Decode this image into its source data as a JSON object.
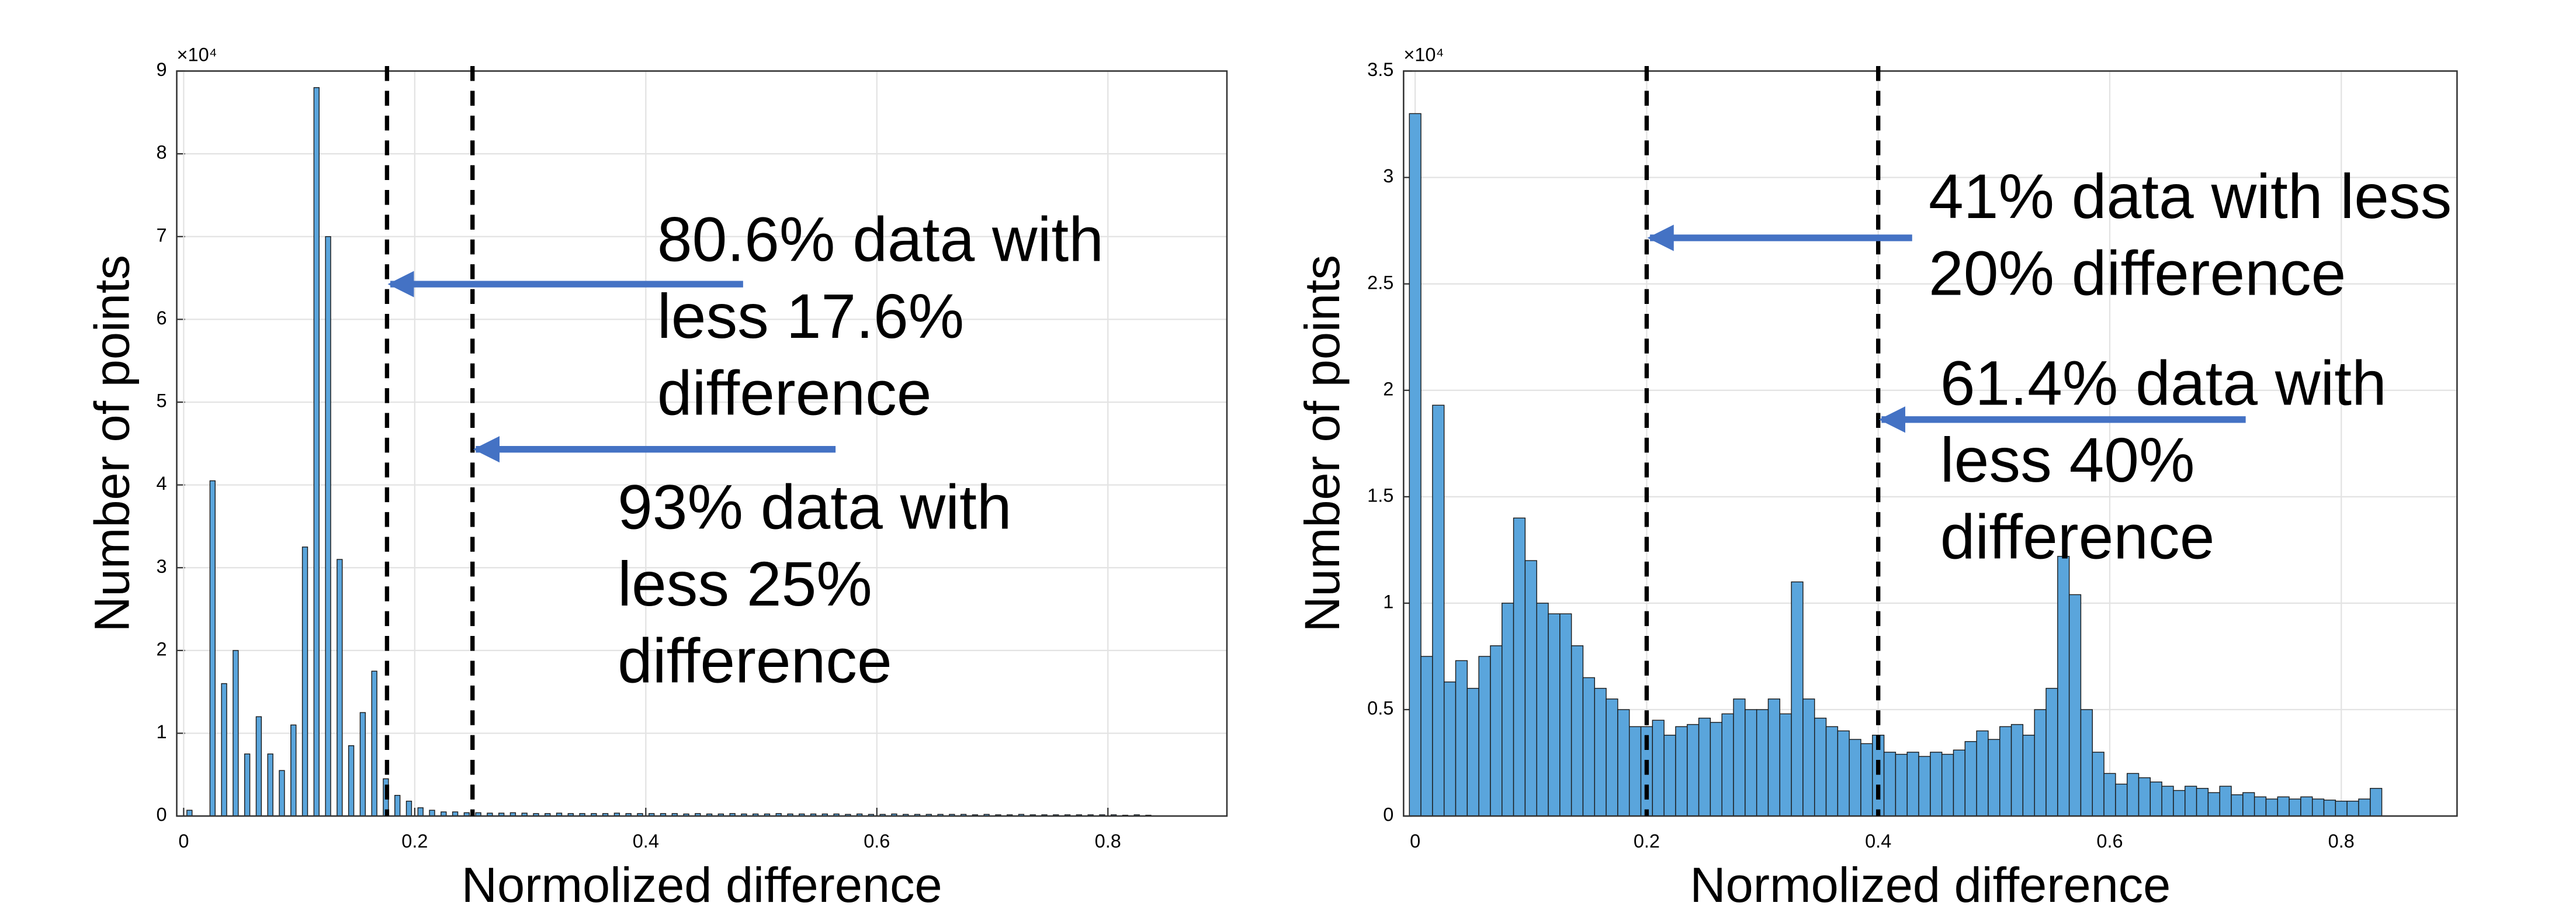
{
  "chart_data": [
    {
      "type": "histogram",
      "xlabel": "Normolized difference",
      "ylabel": "Number of points",
      "y_exponent_label": "×10⁴",
      "bins": [
        0,
        0.01,
        0.02,
        0.03,
        0.04,
        0.05,
        0.06,
        0.07,
        0.08,
        0.09,
        0.1,
        0.11,
        0.12,
        0.13,
        0.14,
        0.15,
        0.16,
        0.17,
        0.18,
        0.19,
        0.2,
        0.21,
        0.22,
        0.23,
        0.24,
        0.25,
        0.26,
        0.27,
        0.28,
        0.29,
        0.3,
        0.31,
        0.32,
        0.33,
        0.34,
        0.35,
        0.36,
        0.37,
        0.38,
        0.39,
        0.4,
        0.41,
        0.42,
        0.43,
        0.44,
        0.45,
        0.46,
        0.47,
        0.48,
        0.49,
        0.5,
        0.51,
        0.52,
        0.53,
        0.54,
        0.55,
        0.56,
        0.57,
        0.58,
        0.59,
        0.6,
        0.61,
        0.62,
        0.63,
        0.64,
        0.65,
        0.66,
        0.67,
        0.68,
        0.69,
        0.7,
        0.71,
        0.72,
        0.73,
        0.74,
        0.75,
        0.76,
        0.77,
        0.78,
        0.79,
        0.8,
        0.81,
        0.82,
        0.83,
        0.84
      ],
      "values": [
        700,
        0,
        40500,
        16000,
        20000,
        7500,
        12000,
        7500,
        5500,
        11000,
        32500,
        88000,
        70000,
        31000,
        8500,
        12500,
        17500,
        4500,
        2500,
        1800,
        1000,
        700,
        500,
        500,
        400,
        400,
        350,
        350,
        400,
        350,
        300,
        300,
        350,
        300,
        300,
        300,
        300,
        350,
        300,
        300,
        300,
        300,
        300,
        250,
        300,
        250,
        250,
        300,
        250,
        250,
        250,
        300,
        250,
        250,
        250,
        250,
        250,
        200,
        250,
        200,
        200,
        250,
        200,
        200,
        200,
        200,
        200,
        200,
        150,
        200,
        150,
        150,
        200,
        150,
        150,
        150,
        150,
        150,
        150,
        150,
        150,
        100,
        150,
        100
      ],
      "color": "#5aa5dc",
      "bar_fraction": 0.45,
      "xlim": [
        -0.006,
        0.903
      ],
      "xticks": [
        0,
        0.2,
        0.4,
        0.6,
        0.8
      ],
      "ylim": [
        0,
        90000
      ],
      "yticks": [
        0,
        {
          "value": 10000,
          "label": "1"
        },
        {
          "value": 20000,
          "label": "2"
        },
        {
          "value": 30000,
          "label": "3"
        },
        {
          "value": 40000,
          "label": "4"
        },
        {
          "value": 50000,
          "label": "5"
        },
        {
          "value": 60000,
          "label": "6"
        },
        {
          "value": 70000,
          "label": "7"
        },
        {
          "value": 80000,
          "label": "8"
        },
        {
          "value": 90000,
          "label": "9"
        }
      ],
      "grid": true,
      "vlines": [
        0.176,
        0.25
      ],
      "annotations": [
        {
          "lines": [
            "80.6% data with",
            "less 17.6%",
            "difference"
          ],
          "target": 0
        },
        {
          "lines": [
            "93% data with",
            "less 25%",
            "difference"
          ],
          "target": 1
        }
      ]
    },
    {
      "type": "histogram",
      "xlabel": "Normolized difference",
      "ylabel": "Number of points",
      "y_exponent_label": "×10⁴",
      "bins": [
        -0.005,
        0.005,
        0.015,
        0.025,
        0.035,
        0.045,
        0.055,
        0.065,
        0.075,
        0.085,
        0.095,
        0.105,
        0.115,
        0.125,
        0.135,
        0.145,
        0.155,
        0.165,
        0.175,
        0.185,
        0.195,
        0.205,
        0.215,
        0.225,
        0.235,
        0.245,
        0.255,
        0.265,
        0.275,
        0.285,
        0.295,
        0.305,
        0.315,
        0.325,
        0.335,
        0.345,
        0.355,
        0.365,
        0.375,
        0.385,
        0.395,
        0.405,
        0.415,
        0.425,
        0.435,
        0.445,
        0.455,
        0.465,
        0.475,
        0.485,
        0.495,
        0.505,
        0.515,
        0.525,
        0.535,
        0.545,
        0.555,
        0.565,
        0.575,
        0.585,
        0.595,
        0.605,
        0.615,
        0.625,
        0.635,
        0.645,
        0.655,
        0.665,
        0.675,
        0.685,
        0.695,
        0.705,
        0.715,
        0.725,
        0.735,
        0.745,
        0.755,
        0.765,
        0.775,
        0.785,
        0.795,
        0.805,
        0.815,
        0.825,
        0.835
      ],
      "values": [
        33000,
        7500,
        19300,
        6300,
        7300,
        6000,
        7500,
        8000,
        10000,
        14000,
        12000,
        10000,
        9500,
        9500,
        8000,
        6500,
        6000,
        5500,
        5000,
        4200,
        4200,
        4500,
        3800,
        4200,
        4300,
        4600,
        4400,
        4800,
        5500,
        5000,
        5000,
        5500,
        4800,
        11000,
        5500,
        4600,
        4200,
        4000,
        3600,
        3400,
        3800,
        3000,
        2900,
        3000,
        2800,
        3000,
        2900,
        3100,
        3500,
        4000,
        3600,
        4200,
        4300,
        3800,
        5000,
        6000,
        12200,
        10400,
        5000,
        3000,
        2000,
        1500,
        2000,
        1800,
        1600,
        1400,
        1200,
        1400,
        1300,
        1100,
        1400,
        1000,
        1100,
        900,
        800,
        900,
        800,
        900,
        800,
        750,
        700,
        700,
        800,
        1300
      ],
      "color": "#5aa5dc",
      "bar_fraction": 1,
      "xlim": [
        -0.01,
        0.9
      ],
      "xticks": [
        0,
        0.2,
        0.4,
        0.6,
        0.8
      ],
      "ylim": [
        0,
        35000
      ],
      "yticks": [
        0,
        {
          "value": 5000,
          "label": "0.5"
        },
        {
          "value": 10000,
          "label": "1"
        },
        {
          "value": 15000,
          "label": "1.5"
        },
        {
          "value": 20000,
          "label": "2"
        },
        {
          "value": 25000,
          "label": "2.5"
        },
        {
          "value": 30000,
          "label": "3"
        },
        {
          "value": 35000,
          "label": "3.5"
        }
      ],
      "grid": true,
      "vlines": [
        0.2,
        0.4
      ],
      "annotations": [
        {
          "lines": [
            "41% data with less",
            "20% difference"
          ],
          "target": 0
        },
        {
          "lines": [
            "61.4% data with",
            "less 40%",
            "difference"
          ],
          "target": 1
        }
      ]
    }
  ]
}
